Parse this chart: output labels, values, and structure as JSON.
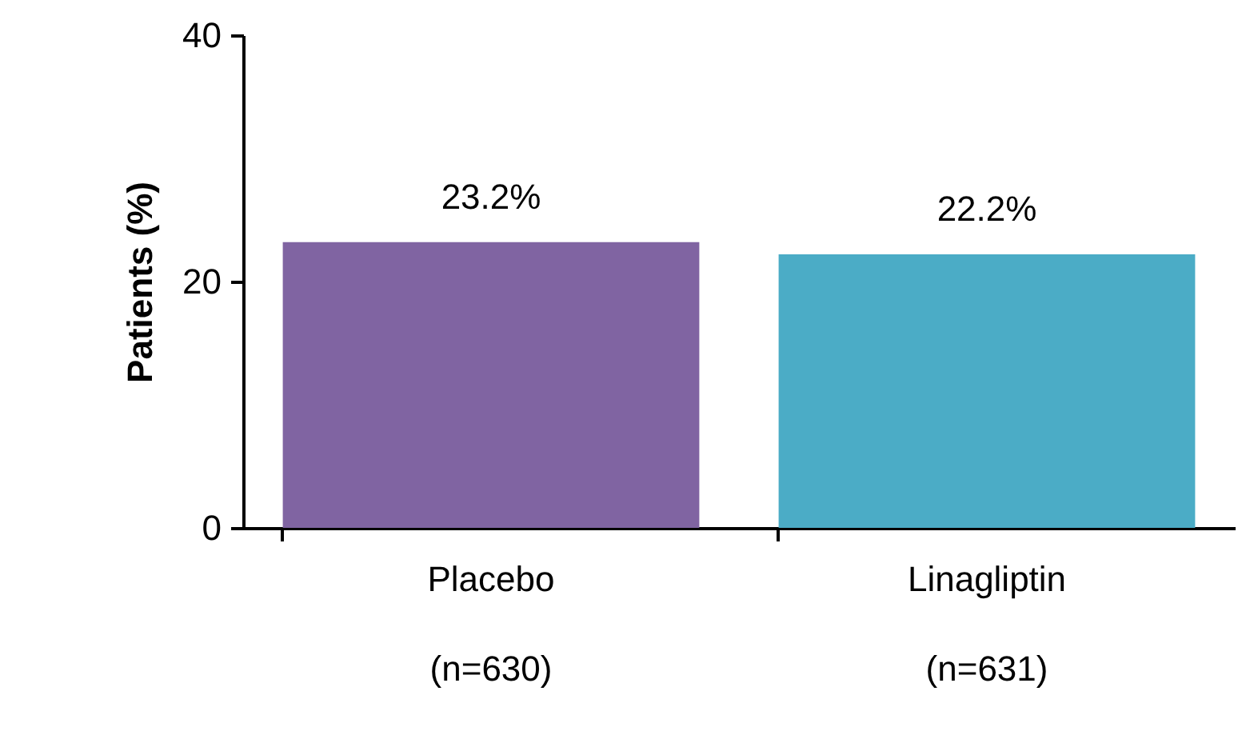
{
  "chart_data": {
    "type": "bar",
    "ylabel": "Patients (%)",
    "categories": [
      "Placebo\n(n=630)",
      "Linagliptin\n(n=631)"
    ],
    "values": [
      23.2,
      22.2
    ],
    "colors": [
      "#8064a2",
      "#4bacc6"
    ],
    "value_labels": [
      "23.2%",
      "22.2%"
    ],
    "ylim": [
      0,
      40
    ],
    "yticks": [
      0,
      20,
      40
    ],
    "grid": false
  }
}
